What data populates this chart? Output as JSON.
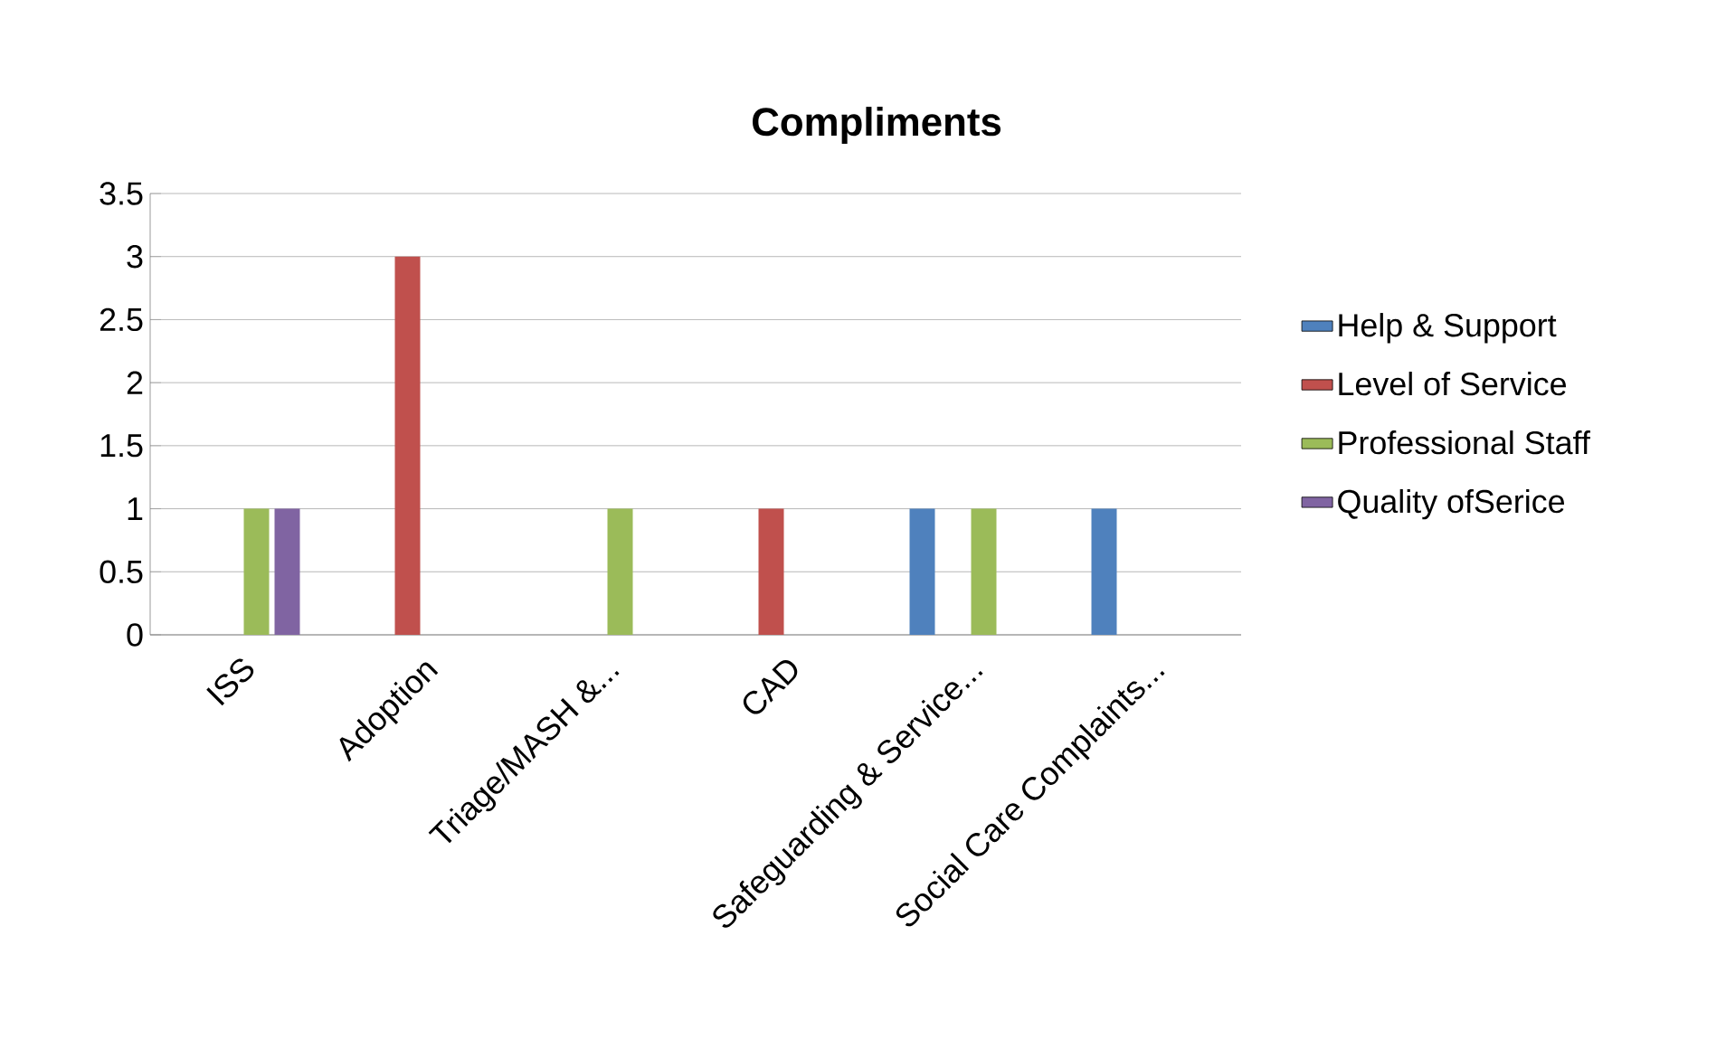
{
  "chart_data": {
    "type": "bar",
    "title": "Compliments",
    "categories": [
      "ISS",
      "Adoption",
      "Triage/MASH &...",
      "CAD",
      "Safeguarding & Service...",
      "Social Care Complaints..."
    ],
    "series": [
      {
        "name": "Help & Support",
        "color": "#4f81bd",
        "values": [
          null,
          null,
          null,
          null,
          1,
          1
        ]
      },
      {
        "name": "Level of Service",
        "color": "#c0504d",
        "values": [
          null,
          3,
          null,
          1,
          null,
          null
        ]
      },
      {
        "name": "Professional Staff",
        "color": "#9bbb59",
        "values": [
          1,
          null,
          1,
          null,
          1,
          null
        ]
      },
      {
        "name": "Quality ofSerice",
        "color": "#8064a2",
        "values": [
          1,
          null,
          null,
          null,
          null,
          null
        ]
      }
    ],
    "ylim": [
      0,
      3.5
    ],
    "yticks": [
      0,
      0.5,
      1,
      1.5,
      2,
      2.5,
      3,
      3.5
    ],
    "grid": "y",
    "legend": "right"
  }
}
